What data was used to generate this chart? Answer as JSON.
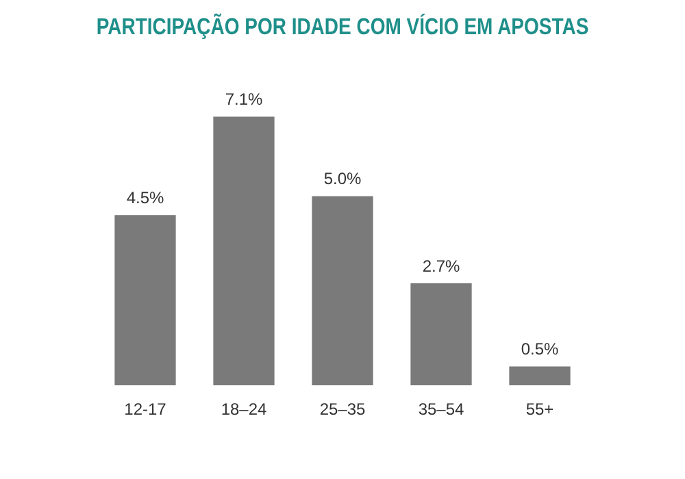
{
  "chart_data": {
    "type": "bar",
    "title": "PARTICIPAÇÃO POR IDADE COM VÍCIO EM APOSTAS",
    "categories": [
      "12-17",
      "18–24",
      "25–35",
      "35–54",
      "55+"
    ],
    "values": [
      4.5,
      7.1,
      5.0,
      2.7,
      0.5
    ],
    "value_labels": [
      "4.5%",
      "7.1%",
      "5.0%",
      "2.7%",
      "0.5%"
    ],
    "color": "#7a7a7a",
    "grid": false,
    "legend": false
  }
}
